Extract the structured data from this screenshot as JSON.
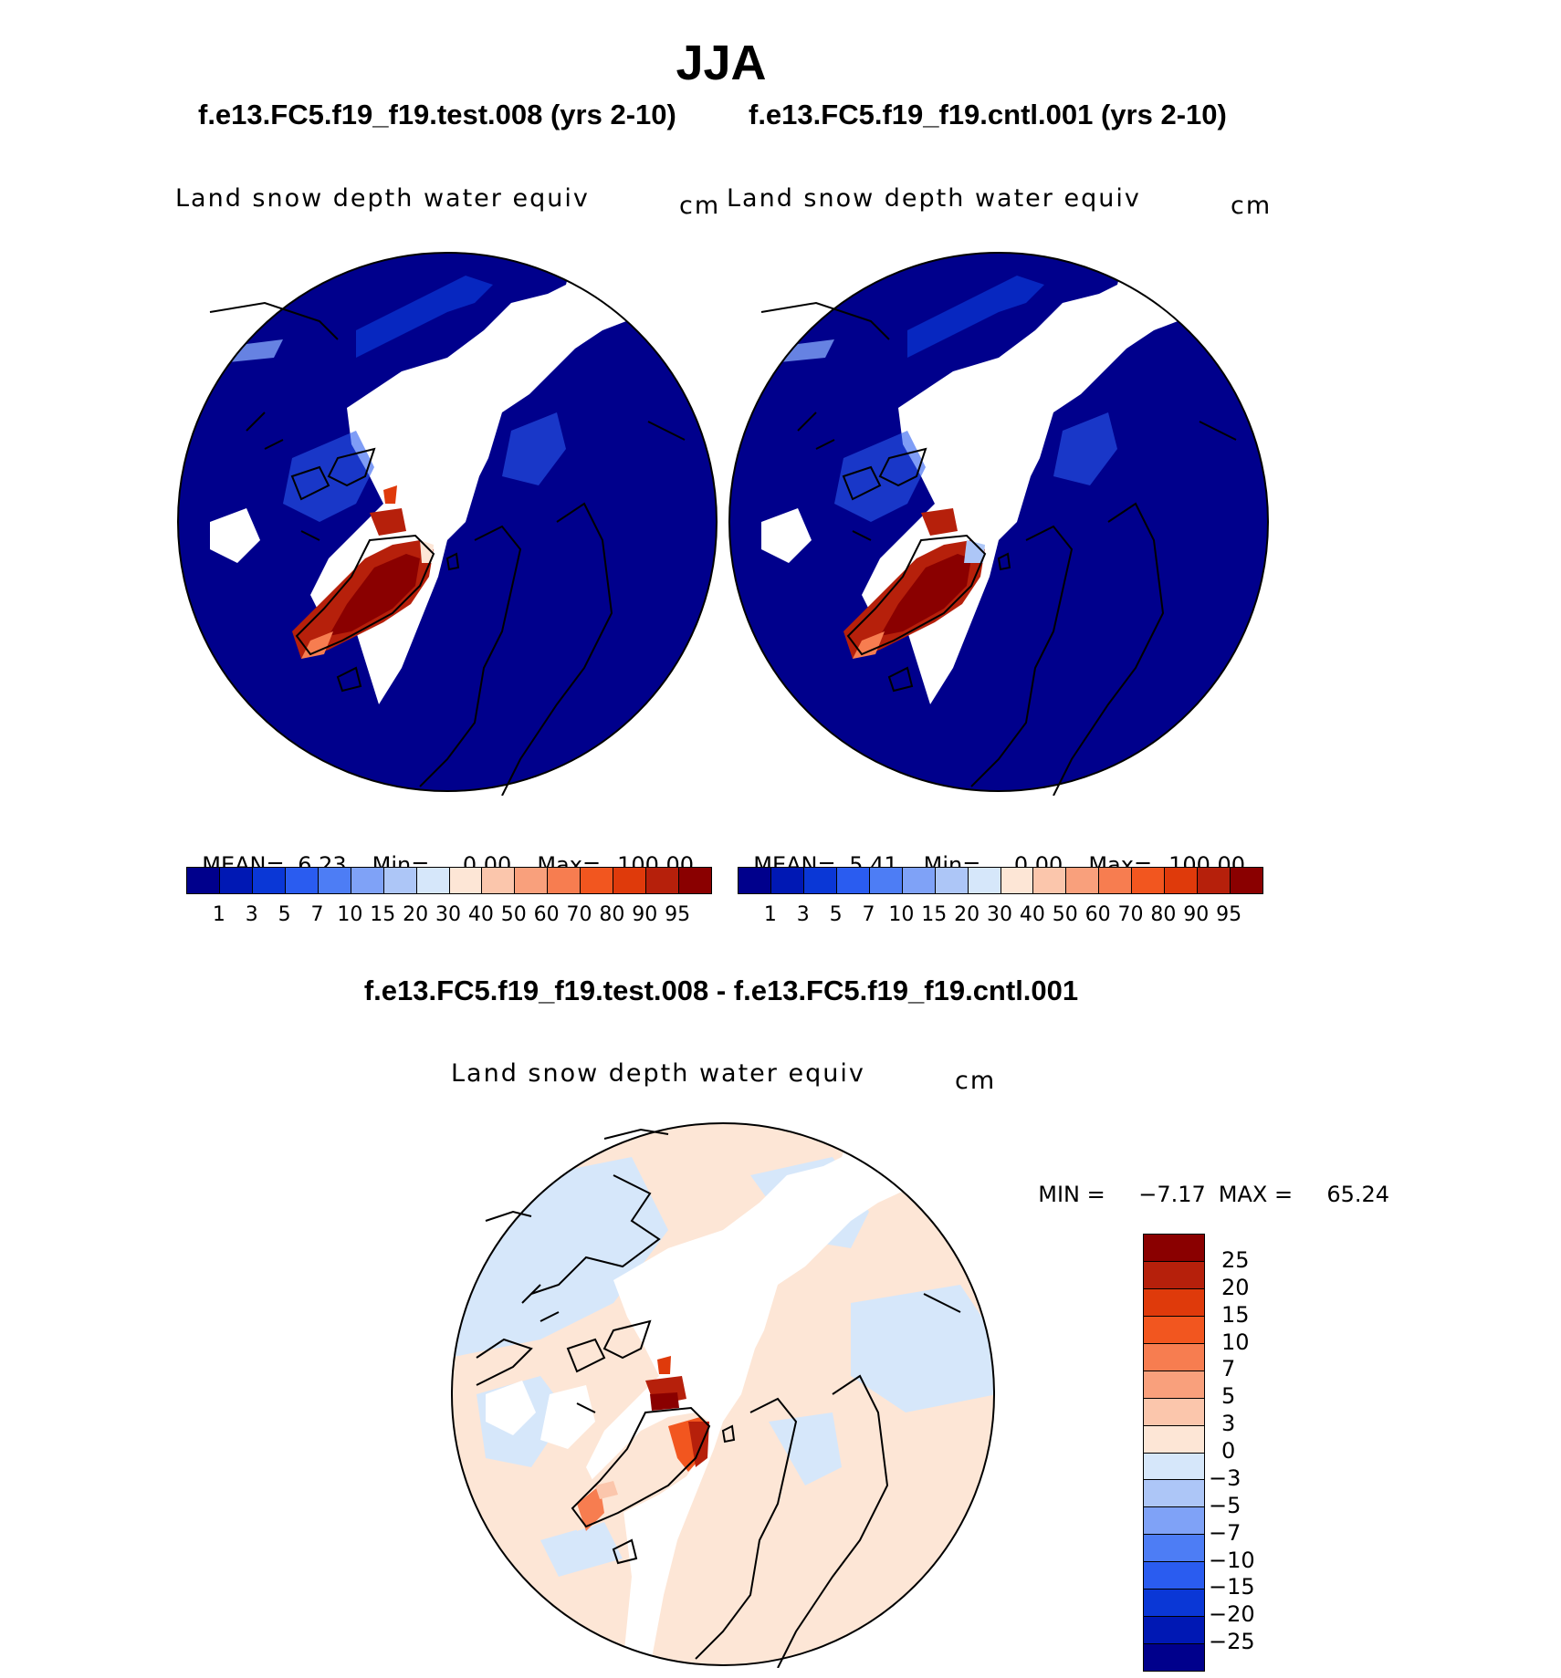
{
  "figure": {
    "title": "JJA"
  },
  "panels": {
    "test": {
      "case_title": "f.e13.FC5.f19_f19.test.008 (yrs 2-10)",
      "variable": "Land snow depth water equiv",
      "units": "cm",
      "mean_label": "MEAN=",
      "mean": "6.23",
      "min_label": "Min=",
      "min": "0.00",
      "max_label": "Max=",
      "max": "100.00"
    },
    "cntl": {
      "case_title": "f.e13.FC5.f19_f19.cntl.001 (yrs 2-10)",
      "variable": "Land snow depth water equiv",
      "units": "cm",
      "mean_label": "MEAN=",
      "mean": "5.41",
      "min_label": "Min=",
      "min": "0.00",
      "max_label": "Max=",
      "max": "100.00"
    },
    "diff": {
      "title": "f.e13.FC5.f19_f19.test.008 - f.e13.FC5.f19_f19.cntl.001",
      "variable": "Land snow depth water equiv",
      "units": "cm",
      "min_label": "MIN =",
      "min": "−7.17",
      "max_label": "MAX =",
      "max": "65.24"
    }
  },
  "colorbar_abs": {
    "levels": [
      "1",
      "3",
      "5",
      "7",
      "10",
      "15",
      "20",
      "30",
      "40",
      "50",
      "60",
      "70",
      "80",
      "90",
      "95"
    ],
    "colors": [
      "#00008c",
      "#0018b4",
      "#0a37d6",
      "#2a5cf0",
      "#4d7df5",
      "#7fa2f7",
      "#adc6f7",
      "#d6e7fa",
      "#fde6d6",
      "#fbc6ac",
      "#f9a07c",
      "#f77d50",
      "#f2561f",
      "#df3a0b",
      "#b6200b",
      "#8a0000"
    ]
  },
  "colorbar_diff": {
    "levels": [
      "25",
      "20",
      "15",
      "10",
      "7",
      "5",
      "3",
      "0",
      "−3",
      "−5",
      "−7",
      "−10",
      "−15",
      "−20",
      "−25"
    ],
    "colors": [
      "#8a0000",
      "#b6200b",
      "#df3a0b",
      "#f2561f",
      "#f77d50",
      "#f9a07c",
      "#fbc6ac",
      "#fde6d6",
      "#d6e7fa",
      "#adc6f7",
      "#7fa2f7",
      "#4d7df5",
      "#2a5cf0",
      "#0a37d6",
      "#0018b4",
      "#00008c"
    ]
  }
}
